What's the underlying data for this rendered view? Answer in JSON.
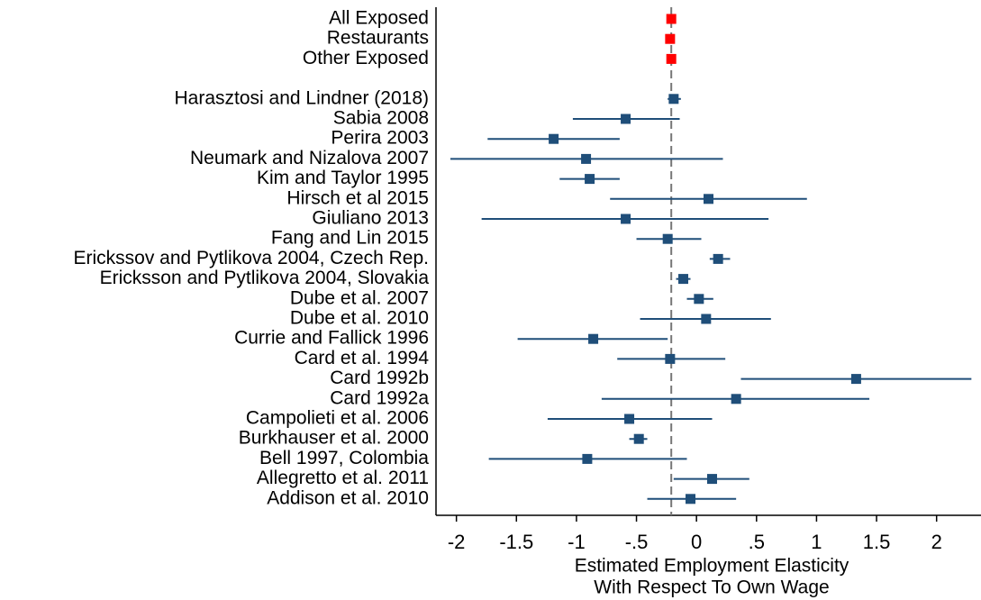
{
  "chart_data": {
    "type": "forest",
    "categories": [
      "All Exposed",
      "Restaurants",
      "Other Exposed",
      null,
      "Harasztosi and Lindner (2018)",
      "Sabia 2008",
      "Perira 2003",
      "Neumark and Nizalova 2007",
      "Kim and Taylor 1995",
      "Hirsch et al 2015",
      "Giuliano 2013",
      "Fang and Lin 2015",
      "Erickssov and Pytlikova 2004, Czech Rep.",
      "Ericksson and Pytlikova 2004, Slovakia",
      "Dube et al. 2007",
      "Dube et al. 2010",
      "Currie and Fallick 1996",
      "Card et al. 1994",
      "Card 1992b",
      "Card 1992a",
      "Campolieti et al. 2006",
      "Burkhauser et al. 2000",
      "Bell 1997, Colombia",
      "Allegretto et al. 2011",
      "Addison et al. 2010"
    ],
    "values": [
      -0.21,
      -0.22,
      -0.21,
      null,
      -0.19,
      -0.59,
      -1.19,
      -0.92,
      -0.89,
      0.1,
      -0.59,
      -0.24,
      0.18,
      -0.11,
      0.02,
      0.08,
      -0.86,
      -0.22,
      1.33,
      0.33,
      -0.56,
      -0.48,
      -0.91,
      0.13,
      -0.05
    ],
    "ci_low": [
      null,
      null,
      null,
      null,
      -0.24,
      -1.03,
      -1.74,
      -2.05,
      -1.14,
      -0.72,
      -1.79,
      -0.5,
      0.11,
      -0.17,
      -0.08,
      -0.47,
      -1.49,
      -0.66,
      0.37,
      -0.79,
      -1.24,
      -0.56,
      -1.73,
      -0.19,
      -0.41
    ],
    "ci_high": [
      null,
      null,
      null,
      null,
      -0.13,
      -0.14,
      -0.64,
      0.22,
      -0.64,
      0.92,
      0.6,
      0.04,
      0.28,
      -0.05,
      0.14,
      0.62,
      -0.24,
      0.24,
      2.29,
      1.44,
      0.13,
      -0.41,
      -0.08,
      0.44,
      0.33
    ],
    "colors": [
      "#ff0000",
      "#ff0000",
      "#ff0000",
      null,
      "#1f4e79",
      "#1f4e79",
      "#1f4e79",
      "#1f4e79",
      "#1f4e79",
      "#1f4e79",
      "#1f4e79",
      "#1f4e79",
      "#1f4e79",
      "#1f4e79",
      "#1f4e79",
      "#1f4e79",
      "#1f4e79",
      "#1f4e79",
      "#1f4e79",
      "#1f4e79",
      "#1f4e79",
      "#1f4e79",
      "#1f4e79",
      "#1f4e79",
      "#1f4e79"
    ],
    "reference_line": -0.21,
    "xlim": [
      -2.17,
      2.37
    ],
    "xticks": [
      -2,
      -1.5,
      -1,
      {
        "value": -0.5,
        "label": "-.5"
      },
      0,
      {
        "value": 0.5,
        "label": ".5"
      },
      1,
      1.5,
      2
    ],
    "xlabel": [
      "Estimated Employment Elasticity",
      "With Respect To Own Wage"
    ]
  }
}
